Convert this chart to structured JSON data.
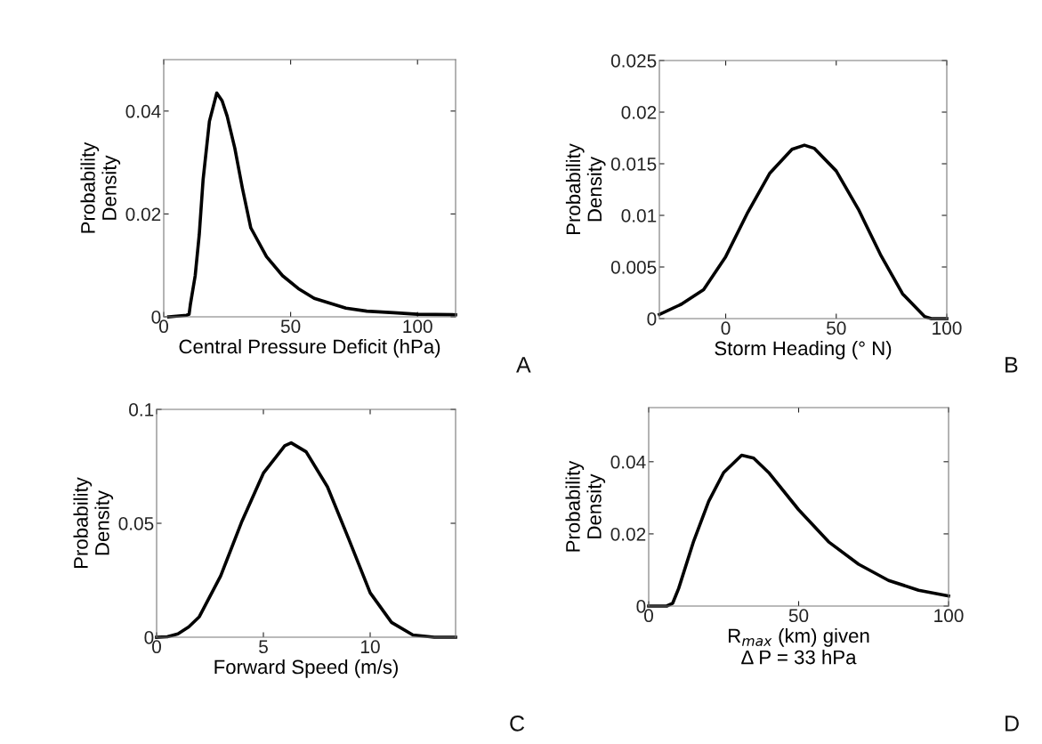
{
  "chart_data": [
    {
      "type": "line",
      "xlabel": "Central Pressure Deficit (hPa)",
      "ylabel": "Probability\nDensity",
      "annotations": [
        "A"
      ],
      "x": [
        2,
        9,
        10,
        10.5,
        12.4,
        14,
        15.5,
        18,
        20.9,
        23,
        25,
        28,
        31,
        34.3,
        40.5,
        46.8,
        53,
        59.3,
        71.8,
        80,
        90.6,
        100,
        115
      ],
      "series": [
        {
          "color": "#000000",
          "values": [
            0,
            0.0003,
            0.0005,
            0.0024,
            0.008,
            0.016,
            0.0266,
            0.038,
            0.0435,
            0.042,
            0.039,
            0.0328,
            0.025,
            0.0173,
            0.0117,
            0.008,
            0.0055,
            0.0036,
            0.0017,
            0.0011,
            0.0008,
            0.0005,
            0.0004
          ]
        }
      ],
      "xlim": [
        0,
        115
      ],
      "ylim": [
        0,
        0.05
      ],
      "xticks": [
        0,
        50,
        100
      ],
      "yticks": [
        0,
        0.02,
        0.04
      ]
    },
    {
      "type": "line",
      "xlabel": "Storm Heading (° N)",
      "ylabel": "Probability\nDensity",
      "annotations": [
        "B"
      ],
      "x": [
        -30,
        -20,
        -10,
        0,
        10,
        20,
        30,
        35.6,
        40,
        50,
        60,
        70,
        80,
        90,
        93,
        100
      ],
      "series": [
        {
          "color": "#000000",
          "values": [
            0.0004,
            0.0014,
            0.0028,
            0.006,
            0.0103,
            0.0141,
            0.0164,
            0.0168,
            0.0165,
            0.0143,
            0.0106,
            0.0062,
            0.0024,
            0.0002,
            0,
            0
          ]
        }
      ],
      "xlim": [
        -30,
        100
      ],
      "ylim": [
        0,
        0.025
      ],
      "xticks": [
        0,
        50,
        100
      ],
      "yticks": [
        0,
        0.005,
        0.01,
        0.015,
        0.02,
        0.025
      ]
    },
    {
      "type": "line",
      "xlabel": "Forward Speed (m/s)",
      "ylabel": "Probability\nDensity",
      "annotations": [
        "C"
      ],
      "x": [
        0,
        0.5,
        1,
        1.5,
        2,
        3,
        4,
        5,
        6,
        6.3,
        7,
        8,
        9,
        10,
        11,
        12,
        13,
        14
      ],
      "series": [
        {
          "color": "#000000",
          "values": [
            0,
            0.0002,
            0.0015,
            0.0045,
            0.009,
            0.0269,
            0.051,
            0.072,
            0.084,
            0.0853,
            0.0814,
            0.066,
            0.043,
            0.0195,
            0.0065,
            0.001,
            0,
            0
          ]
        }
      ],
      "xlim": [
        0,
        14
      ],
      "ylim": [
        0,
        0.1
      ],
      "xticks": [
        0,
        5,
        10
      ],
      "yticks": [
        0,
        0.05,
        0.1
      ]
    },
    {
      "type": "line",
      "xlabel": "R$_{max}$ (km) given\nΔ P = 33 hPa",
      "ylabel": "Probability\nDensity",
      "annotations": [
        "D"
      ],
      "x": [
        0,
        6,
        8,
        10,
        15,
        20,
        25,
        31,
        35,
        40,
        50,
        60,
        70,
        80,
        90,
        100
      ],
      "series": [
        {
          "color": "#000000",
          "values": [
            0,
            0,
            0.0008,
            0.0049,
            0.018,
            0.029,
            0.037,
            0.0418,
            0.041,
            0.037,
            0.0267,
            0.0178,
            0.0116,
            0.0071,
            0.0044,
            0.0028
          ]
        }
      ],
      "xlim": [
        0,
        100
      ],
      "ylim": [
        0,
        0.055
      ],
      "xticks": [
        0,
        50,
        100
      ],
      "yticks": [
        0,
        0.02,
        0.04
      ]
    }
  ]
}
